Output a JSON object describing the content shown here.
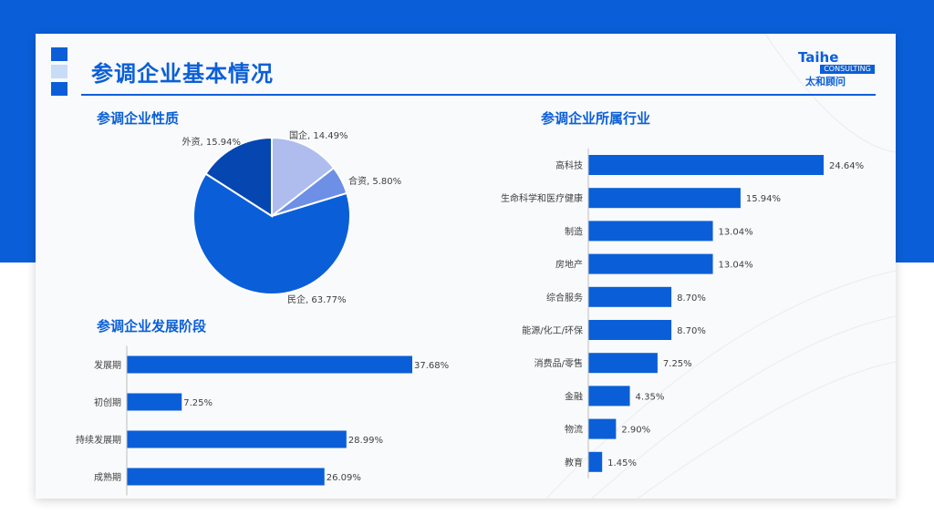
{
  "page": {
    "title": "参调企业基本情况",
    "logo_word": "Taihe",
    "logo_sub": "CONSULTING",
    "logo_cn": "太和顾问",
    "colors": {
      "accent": "#0a5fd8",
      "light_accent": "#c7dcf6"
    }
  },
  "sections": {
    "nature": "参调企业性质",
    "industry": "参调企业所属行业",
    "stage": "参调企业发展阶段"
  },
  "chart_data": [
    {
      "type": "pie",
      "slices": [
        {
          "label": "国企",
          "value": 14.49,
          "display": "国企, 14.49%",
          "color": "#aebdee"
        },
        {
          "label": "合资",
          "value": 5.8,
          "display": "合资, 5.80%",
          "color": "#6d8fe6"
        },
        {
          "label": "民企",
          "value": 63.77,
          "display": "民企, 63.77%",
          "color": "#0a5fd8"
        },
        {
          "label": "外资",
          "value": 15.94,
          "display": "外资, 15.94%",
          "color": "#0546b0"
        }
      ]
    },
    {
      "type": "bar",
      "orientation": "horizontal",
      "categories": [
        "发展期",
        "初创期",
        "持续发展期",
        "成熟期"
      ],
      "values": [
        37.68,
        7.25,
        28.99,
        26.09
      ],
      "value_labels": [
        "37.68%",
        "7.25%",
        "28.99%",
        "26.09%"
      ],
      "color": "#0a5fd8"
    },
    {
      "type": "bar",
      "orientation": "horizontal",
      "categories": [
        "高科技",
        "生命科学和医疗健康",
        "制造",
        "房地产",
        "综合服务",
        "能源/化工/环保",
        "消费品/零售",
        "金融",
        "物流",
        "教育"
      ],
      "values": [
        24.64,
        15.94,
        13.04,
        13.04,
        8.7,
        8.7,
        7.25,
        4.35,
        2.9,
        1.45
      ],
      "value_labels": [
        "24.64%",
        "15.94%",
        "13.04%",
        "13.04%",
        "8.70%",
        "8.70%",
        "7.25%",
        "4.35%",
        "2.90%",
        "1.45%"
      ],
      "color": "#0a5fd8"
    }
  ]
}
